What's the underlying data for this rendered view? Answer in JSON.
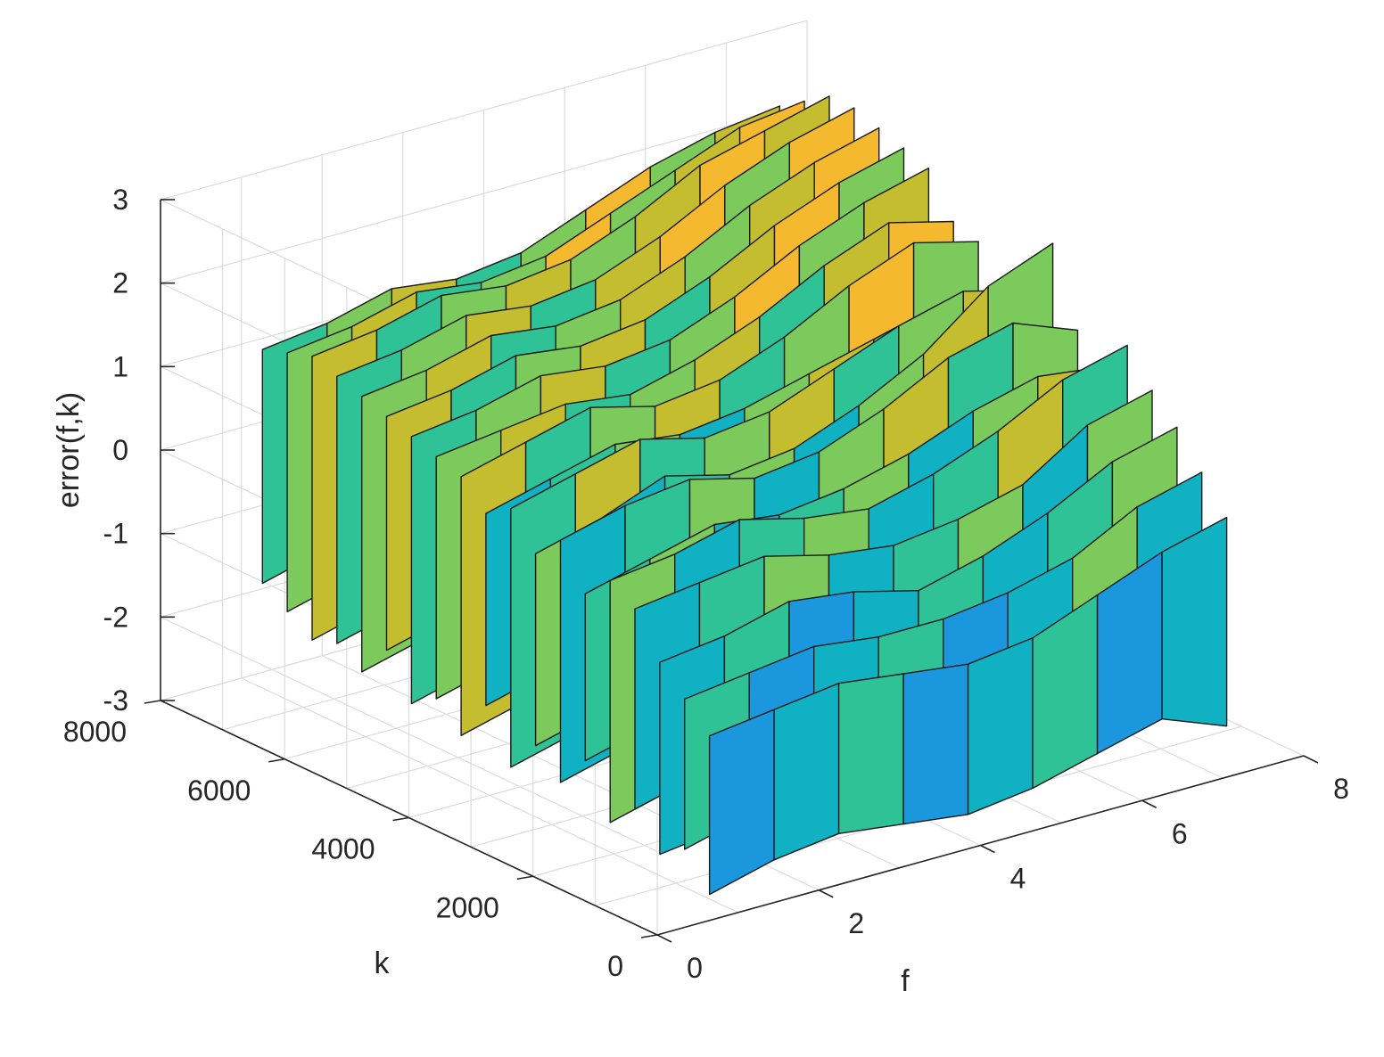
{
  "chart_data": {
    "type": "surface-ribbon-3d",
    "title": "",
    "xlabel": "f",
    "ylabel": "k",
    "zlabel": "error(f,k)",
    "xlim": [
      0,
      8
    ],
    "ylim": [
      0,
      8000
    ],
    "zlim": [
      -3,
      3
    ],
    "x_ticks": [
      "0",
      "2",
      "4",
      "6",
      "8"
    ],
    "y_ticks": [
      "0",
      "2000",
      "4000",
      "6000",
      "8000"
    ],
    "z_ticks": [
      "-3",
      "-2",
      "-1",
      "0",
      "1",
      "2",
      "3"
    ],
    "grid": true,
    "colormap": [
      "#3e26a8",
      "#2f5ef4",
      "#1b97dd",
      "#0fb1c2",
      "#2fc297",
      "#7cc95c",
      "#c5bd30",
      "#f5b92f"
    ],
    "ribbon_f": [
      0.8,
      1.6,
      2.4,
      3.2,
      4.0,
      4.8,
      5.6,
      6.4,
      7.2
    ],
    "ribbons": [
      {
        "k": 200,
        "top": [
          -0.9,
          -0.8,
          -0.7,
          -0.8,
          -0.9,
          -0.8,
          -0.5,
          -0.2,
          0.0
        ],
        "bottom": [
          -2.8,
          -2.6,
          -2.5,
          -2.6,
          -2.7,
          -2.6,
          -2.4,
          -2.2,
          -2.5
        ]
      },
      {
        "k": 600,
        "top": [
          -0.6,
          -0.5,
          -0.4,
          -0.5,
          -0.5,
          -0.4,
          -0.2,
          0.2,
          0.4
        ],
        "bottom": [
          -2.4,
          -2.2,
          -2.1,
          -2.2,
          -2.3,
          -2.0,
          -1.9,
          -2.0,
          -2.3
        ]
      },
      {
        "k": 1000,
        "top": [
          -0.3,
          -0.2,
          0.0,
          -0.1,
          -0.3,
          -0.1,
          0.2,
          0.6,
          0.8
        ],
        "bottom": [
          -2.6,
          -2.5,
          -2.3,
          -2.4,
          -2.2,
          -2.1,
          -2.3,
          -2.1,
          -2.0
        ]
      },
      {
        "k": 1400,
        "top": [
          0.2,
          0.3,
          0.4,
          0.2,
          0.1,
          0.2,
          0.4,
          0.9,
          1.1
        ],
        "bottom": [
          -2.2,
          -2.0,
          -1.9,
          -2.1,
          -2.0,
          -1.8,
          -1.7,
          -1.9,
          -2.1
        ]
      },
      {
        "k": 1800,
        "top": [
          0.4,
          0.5,
          0.7,
          0.5,
          0.4,
          0.6,
          0.9,
          1.3,
          1.5
        ],
        "bottom": [
          -2.5,
          -2.3,
          -2.2,
          -2.4,
          -2.3,
          -2.2,
          -2.0,
          -1.9,
          -2.2
        ]
      },
      {
        "k": 2200,
        "top": [
          0.1,
          0.3,
          0.5,
          0.4,
          0.5,
          0.7,
          1.0,
          1.2,
          1.1
        ],
        "bottom": [
          -1.9,
          -1.7,
          -1.8,
          -2.0,
          -1.8,
          -1.6,
          -1.5,
          -1.7,
          -1.9
        ]
      },
      {
        "k": 2600,
        "top": [
          0.6,
          0.8,
          0.9,
          0.7,
          0.8,
          1.1,
          1.5,
          1.7,
          1.4
        ],
        "bottom": [
          -2.3,
          -2.1,
          -2.0,
          -2.2,
          -2.1,
          -1.9,
          -1.8,
          -2.0,
          -2.1
        ]
      },
      {
        "k": 3000,
        "top": [
          0.3,
          0.5,
          0.8,
          0.6,
          0.7,
          1.0,
          1.4,
          2.0,
          2.3
        ],
        "bottom": [
          -2.0,
          -1.8,
          -1.7,
          -1.9,
          -1.8,
          -1.6,
          -1.5,
          -1.6,
          -1.8
        ]
      },
      {
        "k": 3400,
        "top": [
          0.7,
          0.9,
          1.1,
          0.9,
          1.0,
          1.3,
          1.6,
          1.8,
          1.6
        ],
        "bottom": [
          -2.4,
          -2.2,
          -2.1,
          -2.3,
          -2.2,
          -2.0,
          -1.9,
          -2.1,
          -2.2
        ]
      },
      {
        "k": 3800,
        "top": [
          0.5,
          0.7,
          0.9,
          0.8,
          0.9,
          1.1,
          1.3,
          1.5,
          1.3
        ],
        "bottom": [
          -1.8,
          -1.6,
          -1.5,
          -1.7,
          -1.6,
          -1.5,
          -1.4,
          -1.6,
          -1.7
        ]
      },
      {
        "k": 4200,
        "top": [
          0.8,
          1.0,
          1.2,
          1.0,
          1.1,
          1.4,
          1.8,
          2.1,
          1.9
        ],
        "bottom": [
          -2.3,
          -2.1,
          -2.0,
          -2.2,
          -2.1,
          -1.9,
          -1.8,
          -2.0,
          -2.1
        ]
      },
      {
        "k": 4600,
        "top": [
          0.9,
          1.0,
          1.1,
          1.0,
          1.2,
          1.5,
          1.9,
          2.2,
          2.0
        ],
        "bottom": [
          -2.0,
          -1.8,
          -1.7,
          -1.9,
          -1.8,
          -1.7,
          -1.6,
          -1.8,
          -1.9
        ]
      },
      {
        "k": 5000,
        "top": [
          1.0,
          1.1,
          1.3,
          1.2,
          1.3,
          1.6,
          2.0,
          2.3,
          2.5
        ],
        "bottom": [
          -2.2,
          -2.0,
          -1.9,
          -2.1,
          -2.0,
          -1.8,
          -1.7,
          -1.9,
          -2.0
        ]
      },
      {
        "k": 5400,
        "top": [
          1.1,
          1.2,
          1.4,
          1.3,
          1.4,
          1.7,
          2.1,
          2.4,
          2.6
        ],
        "bottom": [
          -1.7,
          -1.5,
          -1.4,
          -1.6,
          -1.5,
          -1.4,
          -1.3,
          -1.5,
          -1.6
        ]
      },
      {
        "k": 5800,
        "top": [
          1.2,
          1.3,
          1.5,
          1.4,
          1.5,
          1.8,
          2.2,
          2.5,
          2.7
        ],
        "bottom": [
          -2.1,
          -1.9,
          -1.8,
          -2.0,
          -1.9,
          -1.7,
          -1.6,
          -1.8,
          -1.9
        ]
      },
      {
        "k": 6200,
        "top": [
          1.3,
          1.4,
          1.6,
          1.5,
          1.6,
          1.9,
          2.3,
          2.6,
          2.8
        ],
        "bottom": [
          -1.9,
          -1.7,
          -1.6,
          -1.8,
          -1.7,
          -1.6,
          -1.5,
          -1.7,
          -1.8
        ]
      },
      {
        "k": 6600,
        "top": [
          1.4,
          1.5,
          1.7,
          1.6,
          1.7,
          2.0,
          2.4,
          2.6,
          2.8
        ],
        "bottom": [
          -2.0,
          -1.8,
          -1.7,
          -1.9,
          -1.8,
          -1.6,
          -1.5,
          -1.7,
          -1.8
        ]
      },
      {
        "k": 7000,
        "top": [
          1.3,
          1.4,
          1.6,
          1.5,
          1.6,
          1.9,
          2.2,
          2.5,
          2.6
        ],
        "bottom": [
          -1.8,
          -1.6,
          -1.5,
          -1.7,
          -1.6,
          -1.5,
          -1.4,
          -1.6,
          -1.7
        ]
      },
      {
        "k": 7400,
        "top": [
          1.2,
          1.3,
          1.5,
          1.4,
          1.5,
          1.8,
          2.1,
          2.3,
          2.4
        ],
        "bottom": [
          -1.6,
          -1.4,
          -1.3,
          -1.5,
          -1.4,
          -1.3,
          -1.2,
          -1.4,
          -1.5
        ]
      }
    ]
  }
}
